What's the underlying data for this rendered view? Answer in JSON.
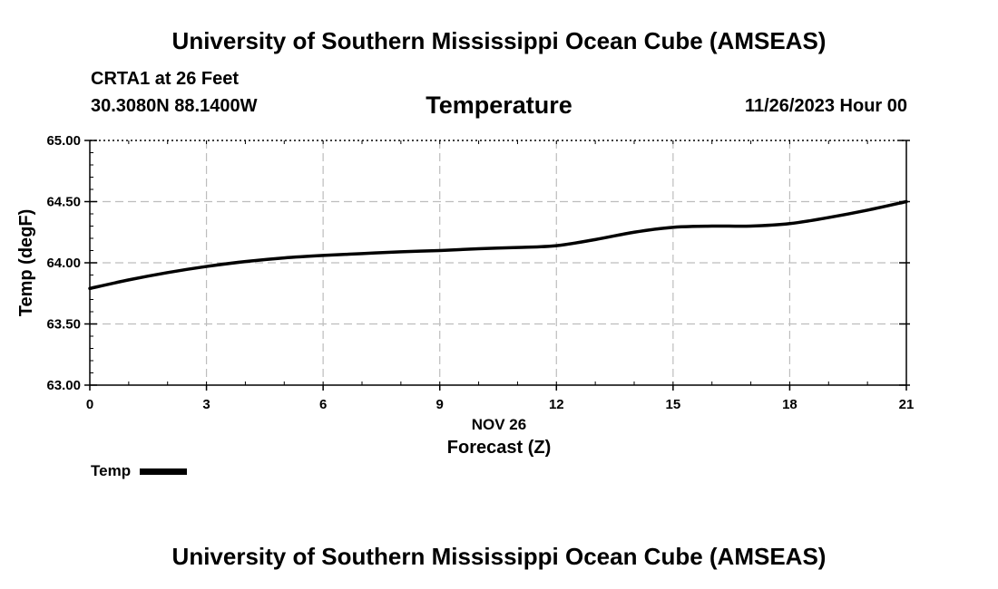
{
  "header": {
    "title": "University of Southern Mississippi Ocean Cube (AMSEAS)",
    "station": "CRTA1 at 26 Feet",
    "coords": "30.3080N  88.1400W",
    "datetime": "11/26/2023 Hour 00"
  },
  "footer": {
    "title": "University of Southern Mississippi Ocean Cube (AMSEAS)"
  },
  "colors": {
    "line": "#000000",
    "grid": "#bdbdbd",
    "axis": "#000000"
  },
  "chart_data": {
    "type": "line",
    "title": "Temperature",
    "xlabel": "Forecast (Z)",
    "xlabel_date": "NOV 26",
    "ylabel": "Temp (degF)",
    "xlim": [
      0,
      21
    ],
    "ylim": [
      63.0,
      65.0
    ],
    "xticks": [
      0,
      3,
      6,
      9,
      12,
      15,
      18,
      21
    ],
    "xtick_labels": [
      "0",
      "3",
      "6",
      "9",
      "12",
      "15",
      "18",
      "21"
    ],
    "yticks": [
      63.0,
      63.5,
      64.0,
      64.5,
      65.0
    ],
    "ytick_labels": [
      "63.00",
      "63.50",
      "64.00",
      "64.50",
      "65.00"
    ],
    "grid": true,
    "series": [
      {
        "name": "Temp",
        "x": [
          0,
          1,
          2,
          3,
          4,
          5,
          6,
          7,
          8,
          9,
          10,
          11,
          12,
          13,
          14,
          15,
          16,
          17,
          18,
          19,
          20,
          21
        ],
        "values": [
          63.79,
          63.86,
          63.92,
          63.97,
          64.01,
          64.04,
          64.06,
          64.075,
          64.09,
          64.1,
          64.115,
          64.125,
          64.14,
          64.19,
          64.25,
          64.29,
          64.3,
          64.3,
          64.32,
          64.37,
          64.43,
          64.5
        ]
      }
    ],
    "legend": [
      {
        "label": "Temp"
      }
    ],
    "legend_position": "bottom-left"
  }
}
